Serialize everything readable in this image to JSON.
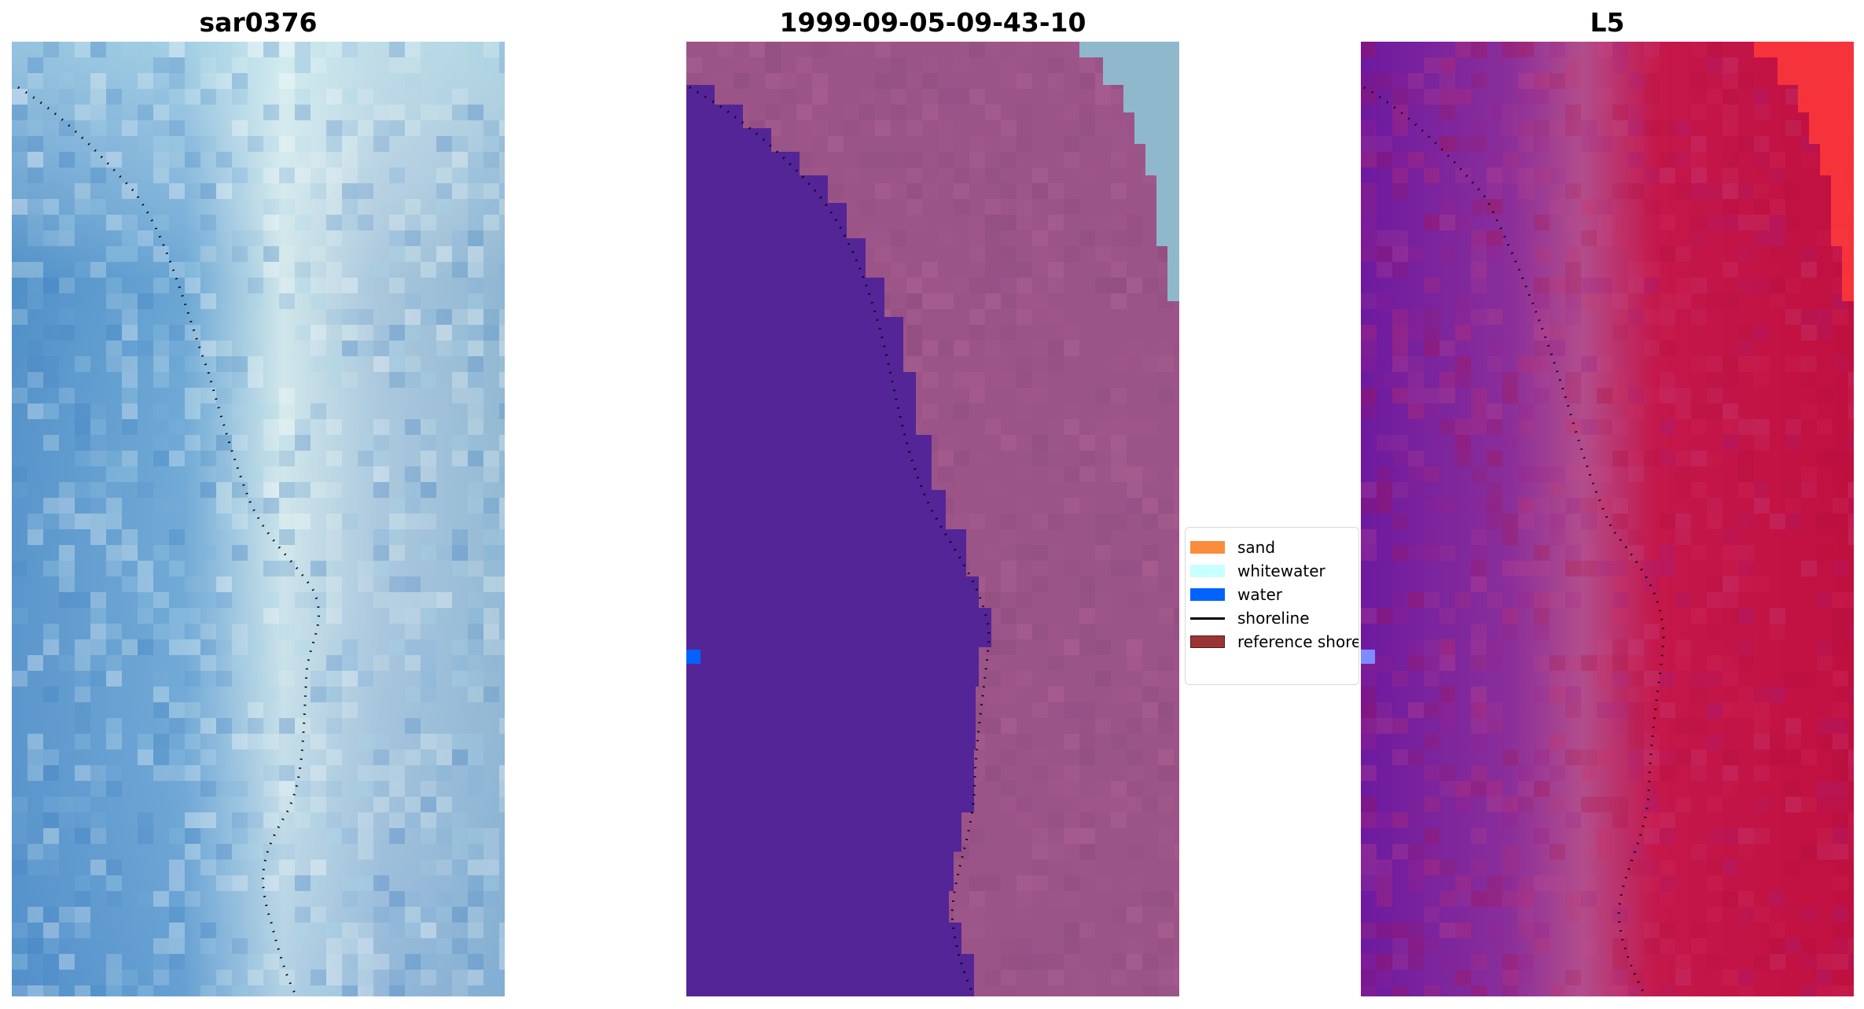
{
  "panels": [
    {
      "id": "sar",
      "title": "sar0376",
      "fill": "#8eb5d6",
      "water_fill": "#5e97c9",
      "accent": "#d8f0ef"
    },
    {
      "id": "classified",
      "title": "1999-09-05-09-43-10",
      "fill": "#9b5488",
      "water_fill": "#542596",
      "accent": "#8fb8cc"
    },
    {
      "id": "l5",
      "title": "L5",
      "fill": "#c21a48",
      "water_fill": "#7a1aa0",
      "accent": "#ff3a3a"
    }
  ],
  "legend": {
    "items": [
      {
        "label": "sand",
        "color": "#fa8c3c",
        "kind": "patch"
      },
      {
        "label": "whitewater",
        "color": "#c8ffff",
        "kind": "patch"
      },
      {
        "label": "water",
        "color": "#0062ff",
        "kind": "patch"
      },
      {
        "label": "shoreline",
        "color": "#000000",
        "kind": "line"
      },
      {
        "label": "reference shore",
        "color": "#9b3535",
        "kind": "patch"
      }
    ]
  },
  "markers": {
    "classified_color": "#0062ff",
    "l5_color": "#7f8cff"
  }
}
